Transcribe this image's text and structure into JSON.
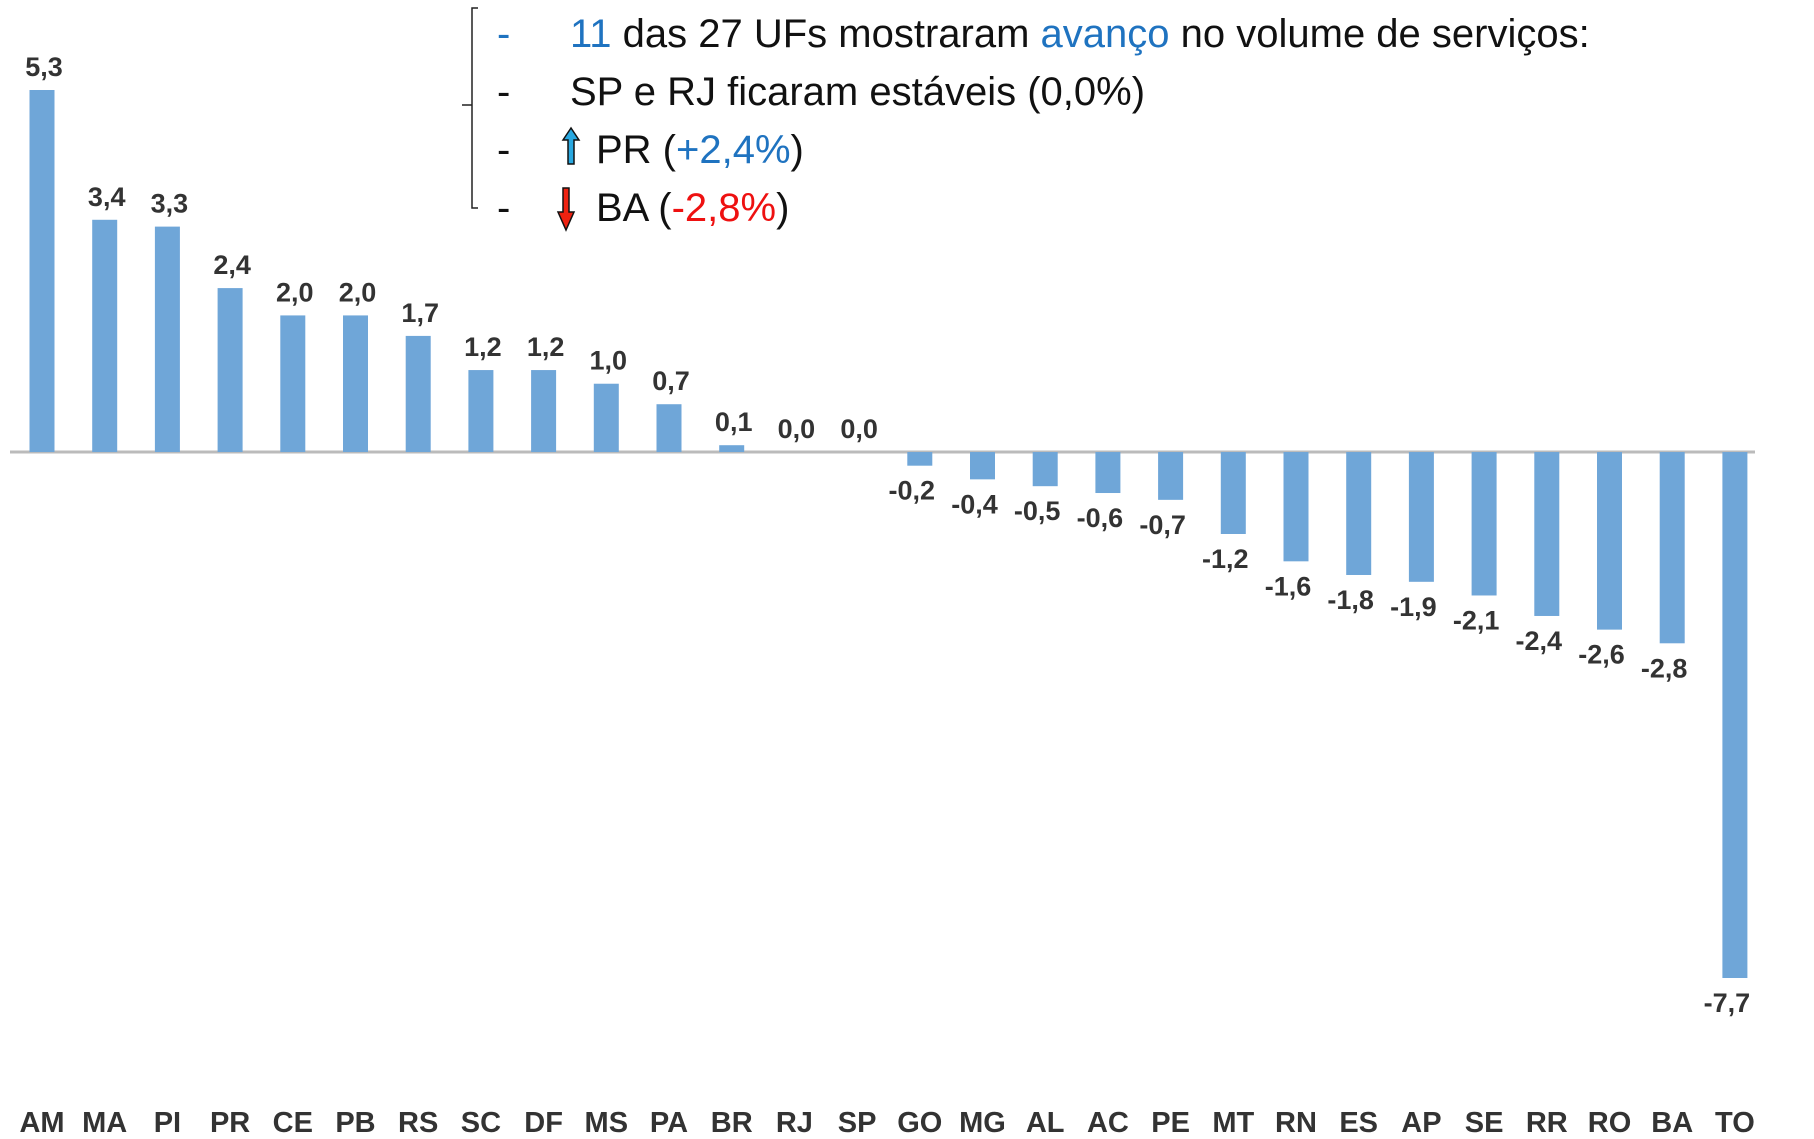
{
  "chart_data": {
    "type": "bar",
    "categories": [
      "AM",
      "MA",
      "PI",
      "PR",
      "CE",
      "PB",
      "RS",
      "SC",
      "DF",
      "MS",
      "PA",
      "BR",
      "RJ",
      "SP",
      "GO",
      "MG",
      "AL",
      "AC",
      "PE",
      "MT",
      "RN",
      "ES",
      "AP",
      "SE",
      "RR",
      "RO",
      "BA",
      "TO"
    ],
    "values": [
      5.3,
      3.4,
      3.3,
      2.4,
      2.0,
      2.0,
      1.7,
      1.2,
      1.2,
      1.0,
      0.7,
      0.1,
      0.0,
      0.0,
      -0.2,
      -0.4,
      -0.5,
      -0.6,
      -0.7,
      -1.2,
      -1.6,
      -1.8,
      -1.9,
      -2.1,
      -2.4,
      -2.6,
      -2.8,
      -7.7
    ],
    "value_labels": [
      "5,3",
      "3,4",
      "3,3",
      "2,4",
      "2,0",
      "2,0",
      "1,7",
      "1,2",
      "1,2",
      "1,0",
      "0,7",
      "0,1",
      "0,0",
      "0,0",
      "-0,2",
      "-0,4",
      "-0,5",
      "-0,6",
      "-0,7",
      "-1,2",
      "-1,6",
      "-1,8",
      "-1,9",
      "-2,1",
      "-2,4",
      "-2,6",
      "-2,8",
      "-7,7"
    ],
    "color": "#6fa6d8",
    "annotations": [
      {
        "bullet": "-",
        "bullet_color": "#1f73c0",
        "parts": [
          {
            "text": "11",
            "color": "#1f73c0"
          },
          {
            "text": " das 27 UFs mostraram ",
            "color": "#111111"
          },
          {
            "text": "avanço",
            "color": "#1f73c0"
          },
          {
            "text": " no volume de serviços:",
            "color": "#111111"
          }
        ]
      },
      {
        "bullet": "-",
        "bullet_color": "#111111",
        "parts": [
          {
            "text": "SP e RJ ficaram estáveis (0,0%)",
            "color": "#111111"
          }
        ]
      },
      {
        "bullet": "-",
        "bullet_color": "#111111",
        "parts": [
          {
            "text": "PR (",
            "color": "#111111"
          },
          {
            "text": "+2,4%",
            "color": "#1f73c0"
          },
          {
            "text": ")",
            "color": "#111111"
          }
        ]
      },
      {
        "bullet": "-",
        "bullet_color": "#111111",
        "parts": [
          {
            "text": "BA (",
            "color": "#111111"
          },
          {
            "text": "-2,8%",
            "color": "#ee1111"
          },
          {
            "text": ")",
            "color": "#111111"
          }
        ]
      }
    ]
  }
}
